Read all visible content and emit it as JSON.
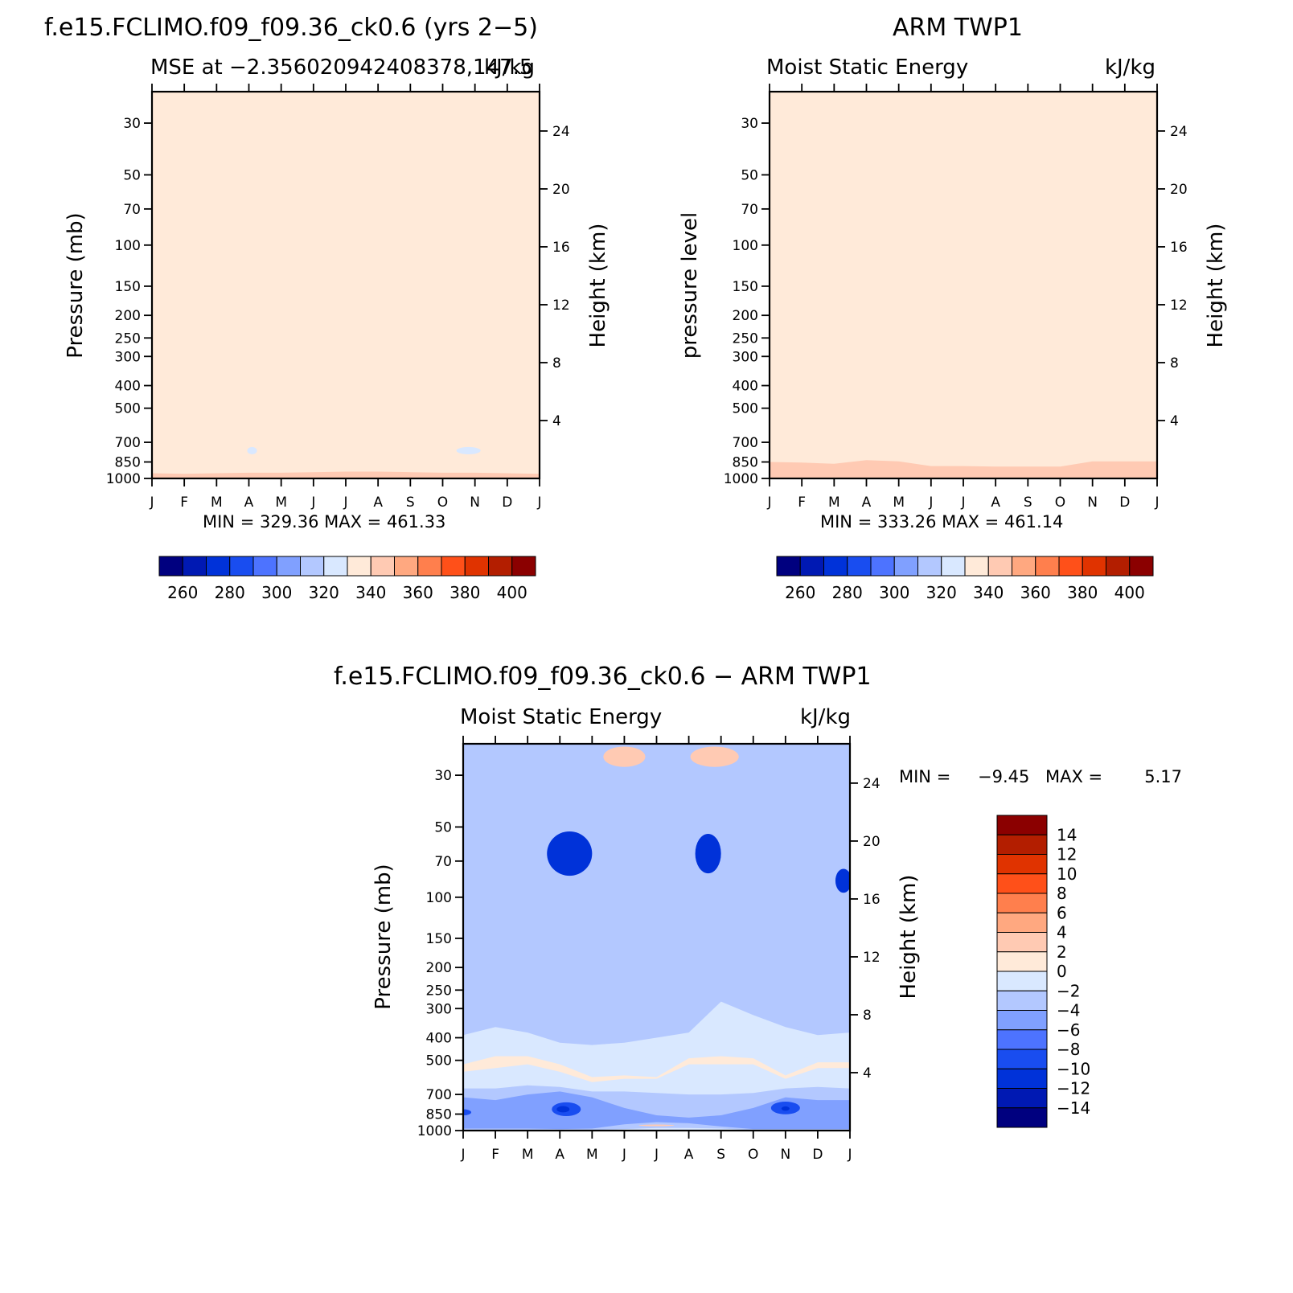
{
  "colors": {
    "palette": [
      "#00007f",
      "#0019b3",
      "#0032d9",
      "#194df0",
      "#4d73ff",
      "#80a0ff",
      "#b3c8ff",
      "#d9e8ff",
      "#ffead9",
      "#ffcab3",
      "#ffa880",
      "#ff7f4d",
      "#ff5019",
      "#e03300",
      "#b31e00",
      "#8b0000"
    ]
  },
  "chart_data": [
    {
      "type": "heatmap",
      "id": "p1",
      "title": "f.e15.FCLIMO.f09_f09.36_ck0.6 (yrs 2−5)",
      "subtitle_left": "MSE at −2.356020942408378,147.5",
      "subtitle_right": "kJ/kg",
      "ylabel": "Pressure (mb)",
      "ylabel_right": "Height (km)",
      "months": [
        "J",
        "F",
        "M",
        "A",
        "M",
        "J",
        "J",
        "A",
        "S",
        "O",
        "N",
        "D",
        "J"
      ],
      "pressure_ticks": [
        30,
        50,
        70,
        100,
        150,
        200,
        250,
        300,
        400,
        500,
        700,
        850,
        1000
      ],
      "height_ticks": [
        24,
        20,
        16,
        12,
        8,
        4
      ],
      "ylim": [
        1000,
        22
      ],
      "min_max": "MIN = 329.36 MAX = 461.33",
      "colorbar_labels": [
        "260",
        "280",
        "300",
        "320",
        "340",
        "360",
        "380",
        "400"
      ],
      "levels": [
        250,
        260,
        270,
        280,
        290,
        300,
        310,
        320,
        330,
        340,
        350,
        360,
        370,
        380,
        390,
        400
      ],
      "bands": [
        {
          "bin": 15,
          "bottom": [
            46,
            47,
            47,
            48,
            50,
            52,
            54,
            53,
            51,
            50,
            49,
            48,
            46
          ]
        },
        {
          "bin": 14,
          "bottom": [
            55,
            55,
            55,
            57,
            59,
            62,
            63,
            62,
            60,
            59,
            58,
            57,
            55
          ]
        },
        {
          "bin": 13,
          "bottom": [
            63,
            64,
            64,
            66,
            68,
            70,
            72,
            71,
            69,
            67,
            66,
            64,
            63
          ]
        },
        {
          "bin": 12,
          "bottom": [
            72,
            73,
            74,
            75,
            77,
            80,
            82,
            81,
            78,
            76,
            74,
            73,
            72
          ]
        },
        {
          "bin": 11,
          "bottom": [
            83,
            84,
            85,
            87,
            89,
            92,
            95,
            94,
            91,
            88,
            86,
            84,
            83
          ]
        },
        {
          "bin": 10,
          "bottom": [
            96,
            97,
            99,
            101,
            104,
            108,
            112,
            111,
            107,
            104,
            102,
            99,
            96
          ]
        },
        {
          "bin": 9,
          "bottom": [
            260,
            280,
            225,
            210,
            230,
            225,
            205,
            215,
            230,
            215,
            195,
            230,
            255
          ]
        },
        {
          "bin": 8,
          "bottom": [
            1000,
            1000,
            1000,
            1000,
            1000,
            1000,
            1000,
            1000,
            1000,
            1000,
            1000,
            1000,
            1000
          ]
        },
        {
          "bin": 9,
          "bottom": [
            1000,
            1000,
            1000,
            1000,
            1000,
            1000,
            1000,
            1000,
            1000,
            1000,
            1000,
            1000,
            1000
          ],
          "top": [
            950,
            955,
            950,
            945,
            945,
            940,
            935,
            935,
            940,
            945,
            945,
            950,
            955
          ]
        }
      ],
      "blobs": [
        {
          "bin": 7,
          "month": 3.1,
          "p": 760,
          "w": 0.3,
          "h": 55
        },
        {
          "bin": 7,
          "month": 9.8,
          "p": 760,
          "w": 0.75,
          "h": 55
        }
      ]
    },
    {
      "type": "heatmap",
      "id": "p2",
      "title": "ARM TWP1",
      "subtitle_left": "Moist Static Energy",
      "subtitle_right": "kJ/kg",
      "ylabel": "pressure level",
      "ylabel_right": "Height (km)",
      "months": [
        "J",
        "F",
        "M",
        "A",
        "M",
        "J",
        "J",
        "A",
        "S",
        "O",
        "N",
        "D",
        "J"
      ],
      "pressure_ticks": [
        30,
        50,
        70,
        100,
        150,
        200,
        250,
        300,
        400,
        500,
        700,
        850,
        1000
      ],
      "height_ticks": [
        24,
        20,
        16,
        12,
        8,
        4
      ],
      "ylim": [
        1000,
        22
      ],
      "min_max": "MIN = 333.26 MAX = 461.14",
      "colorbar_labels": [
        "260",
        "280",
        "300",
        "320",
        "340",
        "360",
        "380",
        "400"
      ],
      "levels": [
        250,
        260,
        270,
        280,
        290,
        300,
        310,
        320,
        330,
        340,
        350,
        360,
        370,
        380,
        390,
        400
      ],
      "bands": [
        {
          "bin": 15,
          "bottom": [
            56,
            57,
            58,
            59,
            60,
            61,
            62,
            63,
            62,
            61,
            59,
            58,
            56
          ]
        },
        {
          "bin": 14,
          "bottom": [
            65,
            66,
            67,
            68,
            69,
            70,
            71,
            72,
            71,
            70,
            68,
            67,
            65
          ]
        },
        {
          "bin": 13,
          "bottom": [
            75,
            76,
            77,
            78,
            79,
            80,
            82,
            83,
            82,
            80,
            78,
            77,
            75
          ]
        },
        {
          "bin": 12,
          "bottom": [
            85,
            86,
            87,
            88,
            89,
            90,
            92,
            93,
            92,
            90,
            88,
            87,
            85
          ]
        },
        {
          "bin": 11,
          "bottom": [
            100,
            101,
            102,
            103,
            104,
            105,
            107,
            108,
            107,
            105,
            103,
            102,
            100
          ]
        },
        {
          "bin": 10,
          "bottom": [
            125,
            126,
            127,
            128,
            129,
            130,
            130,
            131,
            130,
            129,
            128,
            127,
            126
          ]
        },
        {
          "bin": 9,
          "bottom": [
            370,
            370,
            360,
            355,
            355,
            320,
            315,
            300,
            310,
            320,
            355,
            345,
            355
          ]
        },
        {
          "bin": 8,
          "bottom": [
            1000,
            1000,
            1000,
            1000,
            1000,
            1000,
            1000,
            1000,
            1000,
            1000,
            1000,
            1000,
            1000
          ]
        },
        {
          "bin": 9,
          "bottom": [
            1000,
            1000,
            1000,
            1000,
            1000,
            1000,
            1000,
            1000,
            1000,
            1000,
            1000,
            1000,
            1000
          ],
          "top": [
            850,
            855,
            865,
            835,
            845,
            885,
            885,
            890,
            890,
            890,
            845,
            845,
            845
          ]
        }
      ],
      "blobs": []
    },
    {
      "type": "heatmap",
      "id": "p3",
      "title": "f.e15.FCLIMO.f09_f09.36_ck0.6 − ARM TWP1",
      "subtitle_left": "Moist Static Energy",
      "subtitle_right": "kJ/kg",
      "ylabel": "Pressure (mb)",
      "ylabel_right": "Height (km)",
      "months": [
        "J",
        "F",
        "M",
        "A",
        "M",
        "J",
        "J",
        "A",
        "S",
        "O",
        "N",
        "D",
        "J"
      ],
      "pressure_ticks": [
        30,
        50,
        70,
        100,
        150,
        200,
        250,
        300,
        400,
        500,
        700,
        850,
        1000
      ],
      "height_ticks": [
        24,
        20,
        16,
        12,
        8,
        4
      ],
      "ylim": [
        1000,
        22
      ],
      "min_max_label": "MIN = ",
      "min_value": "−9.45",
      "max_label": "MAX = ",
      "max_value": "5.17",
      "colorbar_labels": [
        "14",
        "12",
        "10",
        "8",
        "6",
        "4",
        "2",
        "0",
        "−2",
        "−4",
        "−6",
        "−8",
        "−10",
        "−12",
        "−14"
      ],
      "levels": [
        -14,
        -12,
        -10,
        -8,
        -6,
        -4,
        -2,
        0,
        2,
        4,
        6,
        8,
        10,
        12,
        14
      ],
      "bands": [
        {
          "bin": 7,
          "bottom": [
            1000,
            1000,
            1000,
            1000,
            1000,
            1000,
            1000,
            1000,
            1000,
            1000,
            1000,
            1000,
            1000
          ]
        },
        {
          "bin": 6,
          "bottom": [
            28,
            22,
            35,
            30,
            28,
            33,
            40,
            35,
            30,
            25,
            22,
            28,
            30
          ]
        },
        {
          "bin": 5,
          "bottom": [
            45,
            30,
            42,
            42,
            45,
            47,
            50,
            45,
            44,
            45,
            40,
            40,
            48
          ]
        },
        {
          "bin": 4,
          "bottom": [
            55,
            50,
            50,
            50,
            52,
            54,
            55,
            54,
            54,
            55,
            55,
            55,
            55
          ]
        },
        {
          "bin": 3,
          "bottom": [
            115,
            115,
            115,
            118,
            110,
            96,
            92,
            110,
            108,
            112,
            120,
            118,
            110
          ]
        },
        {
          "bin": 2,
          "bottom": [
            110,
            110,
            110,
            105,
            110,
            103,
            98,
            105,
            100,
            104,
            105,
            108,
            108
          ]
        },
        {
          "bin": 5,
          "bottom": [
            140,
            140,
            145,
            145,
            140,
            125,
            125,
            140,
            130,
            140,
            150,
            150,
            145
          ]
        },
        {
          "bin": 6,
          "bottom": [
            390,
            360,
            380,
            420,
            430,
            420,
            400,
            380,
            280,
            320,
            360,
            390,
            380
          ]
        },
        {
          "bin": 7,
          "bottom": [
            1000,
            1000,
            1000,
            1000,
            1000,
            1000,
            1000,
            1000,
            1000,
            1000,
            1000,
            1000,
            1000
          ],
          "top": [
            470,
            460,
            480,
            500,
            520,
            500,
            480,
            460,
            420,
            460,
            500,
            480,
            470
          ]
        },
        {
          "bin": 8,
          "bottom": [
            560,
            540,
            520,
            560,
            620,
            600,
            600,
            520,
            520,
            520,
            600,
            540,
            540
          ],
          "top": [
            520,
            480,
            480,
            520,
            590,
            580,
            590,
            490,
            480,
            490,
            580,
            510,
            510
          ]
        },
        {
          "bin": 6,
          "bottom": [
            1000,
            1000,
            1000,
            1000,
            1000,
            1000,
            1000,
            1000,
            1000,
            1000,
            1000,
            1000,
            1000
          ],
          "top": [
            660,
            660,
            640,
            650,
            680,
            680,
            690,
            700,
            700,
            690,
            660,
            650,
            660
          ]
        },
        {
          "bin": 5,
          "bottom": [
            1000,
            1000,
            1000,
            1000,
            1000,
            1000,
            1000,
            1000,
            1000,
            1000,
            1000,
            1000,
            1000
          ],
          "top": [
            720,
            740,
            700,
            680,
            720,
            800,
            860,
            880,
            860,
            800,
            720,
            740,
            740
          ]
        },
        {
          "bin": 6,
          "bottom": [
            1000,
            1000,
            1000,
            1000,
            1000,
            1000,
            1000,
            1000,
            1000,
            1000,
            1000,
            1000,
            1000
          ],
          "top": [
            980,
            980,
            980,
            985,
            980,
            940,
            920,
            930,
            960,
            985,
            985,
            985,
            985
          ]
        },
        {
          "bin": 7,
          "bottom": [
            1000,
            1000,
            1000,
            1000,
            1000,
            1000,
            1000,
            1000,
            1000,
            1000,
            1000,
            1000,
            1000
          ],
          "top": [
            990,
            995,
            995,
            995,
            995,
            985,
            975,
            975,
            980,
            995,
            995,
            995,
            995
          ]
        }
      ],
      "blobs": [
        {
          "bin": 3,
          "month": 0.0,
          "p": 835,
          "w": 0.5,
          "h": 50
        },
        {
          "bin": 3,
          "month": 3.2,
          "p": 810,
          "w": 0.9,
          "h": 110
        },
        {
          "bin": 2,
          "month": 3.1,
          "p": 810,
          "w": 0.4,
          "h": 50
        },
        {
          "bin": 3,
          "month": 10.0,
          "p": 800,
          "w": 0.9,
          "h": 100
        },
        {
          "bin": 2,
          "month": 10.0,
          "p": 805,
          "w": 0.25,
          "h": 35
        },
        {
          "bin": 2,
          "month": 3.3,
          "p": 65,
          "w": 1.4,
          "h": 28
        },
        {
          "bin": 2,
          "month": 7.6,
          "p": 65,
          "w": 0.8,
          "h": 25
        },
        {
          "bin": 2,
          "month": 11.8,
          "p": 85,
          "w": 0.5,
          "h": 20
        },
        {
          "bin": 9,
          "month": 5.0,
          "p": 25,
          "w": 1.3,
          "h": 5
        },
        {
          "bin": 9,
          "month": 7.8,
          "p": 25,
          "w": 1.5,
          "h": 5
        },
        {
          "bin": 9,
          "month": 6.0,
          "p": 950,
          "w": 1.1,
          "h": 15
        }
      ]
    }
  ]
}
